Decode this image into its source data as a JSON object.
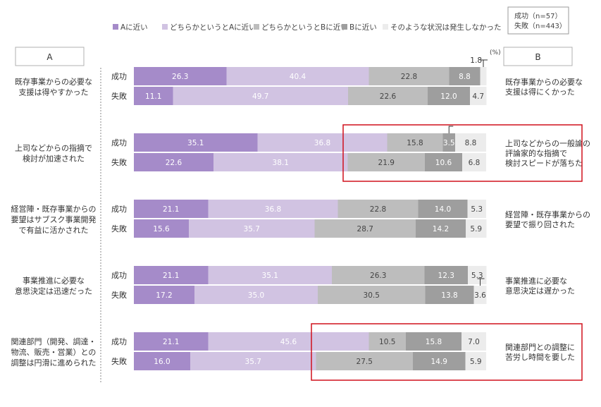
{
  "sample_box": {
    "line1": "成功（n=57）",
    "line2": "失敗（n=443）"
  },
  "unit_label": "(%)",
  "colors": [
    "#a58bc9",
    "#d1c3e2",
    "#bdbdbd",
    "#9e9e9e",
    "#ececec"
  ],
  "highlight_color": "#d0101c",
  "chart_data": {
    "type": "bar",
    "orientation": "horizontal",
    "stacked": true,
    "xlim": [
      0,
      100
    ],
    "left_header": "A",
    "right_header": "B",
    "legend": [
      "Aに近い",
      "どちらかというとAに近い",
      "どちらかというとBに近い",
      "Bに近い",
      "そのような状況は発生しなかった"
    ],
    "row_labels": [
      "成功",
      "失敗"
    ],
    "groups": [
      {
        "left_label": [
          "既存事業からの必要な",
          "支援は得やすかった"
        ],
        "right_label": [
          "既存事業からの必要な",
          "支援は得にくかった"
        ],
        "rows": [
          {
            "label": "成功",
            "values": [
              26.3,
              40.4,
              22.8,
              8.8,
              1.8
            ]
          },
          {
            "label": "失敗",
            "values": [
              11.1,
              49.7,
              22.6,
              12.0,
              4.7
            ]
          }
        ],
        "highlight": false
      },
      {
        "left_label": [
          "上司などからの指摘で",
          "検討が加速された"
        ],
        "right_label": [
          "上司などからの一般論の",
          "評論家的な指摘で",
          "検討スピードが落ちた"
        ],
        "rows": [
          {
            "label": "成功",
            "values": [
              35.1,
              36.8,
              15.8,
              3.5,
              8.8
            ]
          },
          {
            "label": "失敗",
            "values": [
              22.6,
              38.1,
              21.9,
              10.6,
              6.8
            ]
          }
        ],
        "highlight": true
      },
      {
        "left_label": [
          "経営陣・既存事業からの",
          "要望はサブスク事業開発",
          "で有益に活かされた"
        ],
        "right_label": [
          "経営陣・既存事業からの",
          "要望で振り回された"
        ],
        "rows": [
          {
            "label": "成功",
            "values": [
              21.1,
              36.8,
              22.8,
              14.0,
              5.3
            ]
          },
          {
            "label": "失敗",
            "values": [
              15.6,
              35.7,
              28.7,
              14.2,
              5.9
            ]
          }
        ],
        "highlight": false
      },
      {
        "left_label": [
          "事業推進に必要な",
          "意思決定は迅速だった"
        ],
        "right_label": [
          "事業推進に必要な",
          "意思決定は遅かった"
        ],
        "rows": [
          {
            "label": "成功",
            "values": [
              21.1,
              35.1,
              26.3,
              12.3,
              5.3
            ]
          },
          {
            "label": "失敗",
            "values": [
              17.2,
              35.0,
              30.5,
              13.8,
              3.6
            ]
          }
        ],
        "highlight": false
      },
      {
        "left_label": [
          "関連部門（開発、調達・",
          "物流、販売・営業）との",
          "調整は円滑に進められた"
        ],
        "right_label": [
          "関連部門との調整に",
          "苦労し時間を要した"
        ],
        "rows": [
          {
            "label": "成功",
            "values": [
              21.1,
              45.6,
              10.5,
              15.8,
              7.0
            ]
          },
          {
            "label": "失敗",
            "values": [
              16.0,
              35.7,
              27.5,
              14.9,
              5.9
            ]
          }
        ],
        "highlight": true
      }
    ]
  }
}
